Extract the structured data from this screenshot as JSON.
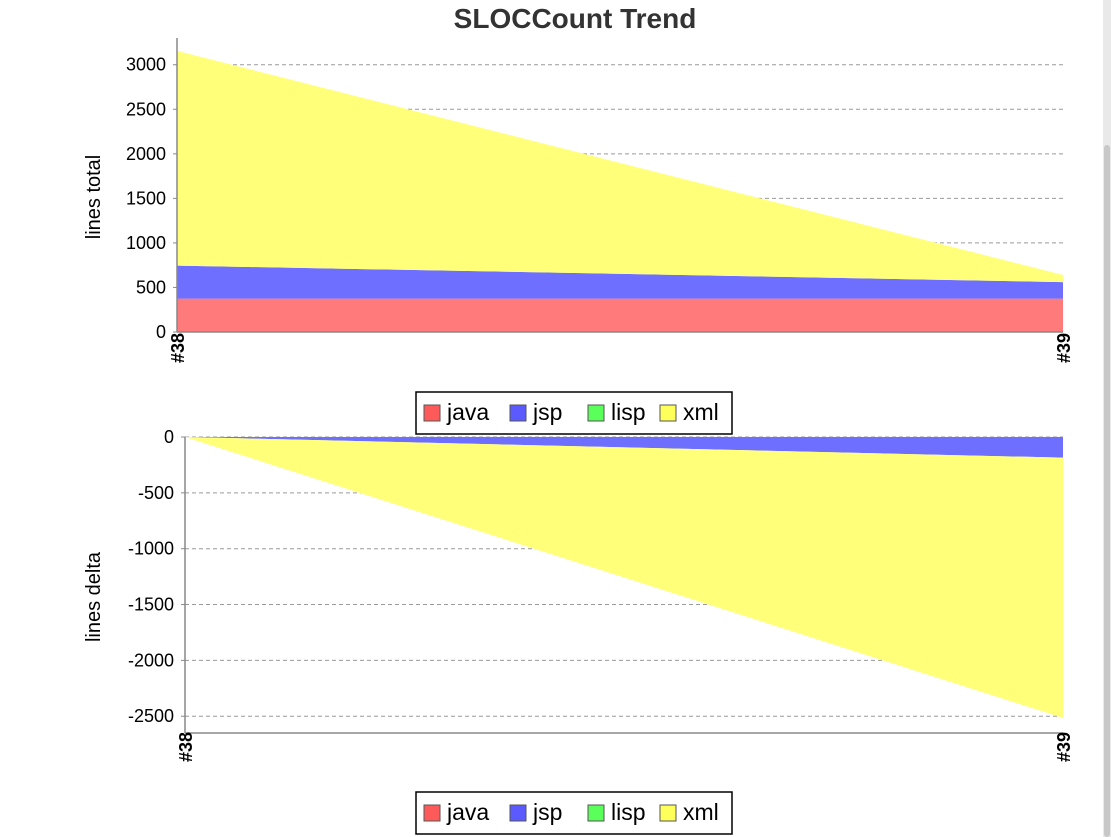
{
  "chart_data": [
    {
      "type": "area",
      "stacked": true,
      "title": "SLOCCount Trend",
      "ylabel": "lines total",
      "xlabel": "",
      "categories": [
        "#38",
        "#39"
      ],
      "ylim": [
        0,
        3300
      ],
      "yticks": [
        0,
        500,
        1000,
        1500,
        2000,
        2500,
        3000
      ],
      "grid": true,
      "series": [
        {
          "name": "java",
          "color": "#ff7a7a",
          "values": [
            375,
            375
          ]
        },
        {
          "name": "jsp",
          "color": "#6e6eff",
          "values": [
            370,
            185
          ]
        },
        {
          "name": "lisp",
          "color": "#5cff5c",
          "values": [
            0,
            0
          ]
        },
        {
          "name": "xml",
          "color": "#ffff7a",
          "values": [
            2410,
            80
          ]
        }
      ],
      "legend": {
        "placement": "bottom",
        "items": [
          {
            "label": "java",
            "color": "#ff5a5a"
          },
          {
            "label": "jsp",
            "color": "#5a5aff"
          },
          {
            "label": "lisp",
            "color": "#5aff5a"
          },
          {
            "label": "xml",
            "color": "#ffff5a"
          }
        ]
      }
    },
    {
      "type": "area",
      "stacked": true,
      "title": "",
      "ylabel": "lines delta",
      "xlabel": "",
      "categories": [
        "#38",
        "#39"
      ],
      "ylim": [
        -2650,
        0
      ],
      "yticks": [
        0,
        -500,
        -1000,
        -1500,
        -2000,
        -2500
      ],
      "grid": true,
      "series": [
        {
          "name": "java",
          "color": "#ff7a7a",
          "values": [
            0,
            0
          ]
        },
        {
          "name": "jsp",
          "color": "#6e6eff",
          "values": [
            0,
            -185
          ]
        },
        {
          "name": "lisp",
          "color": "#5cff5c",
          "values": [
            0,
            0
          ]
        },
        {
          "name": "xml",
          "color": "#ffff7a",
          "values": [
            0,
            -2330
          ]
        }
      ],
      "legend": {
        "placement": "bottom",
        "items": [
          {
            "label": "java",
            "color": "#ff5a5a"
          },
          {
            "label": "jsp",
            "color": "#5a5aff"
          },
          {
            "label": "lisp",
            "color": "#5aff5a"
          },
          {
            "label": "xml",
            "color": "#ffff5a"
          }
        ]
      }
    }
  ]
}
